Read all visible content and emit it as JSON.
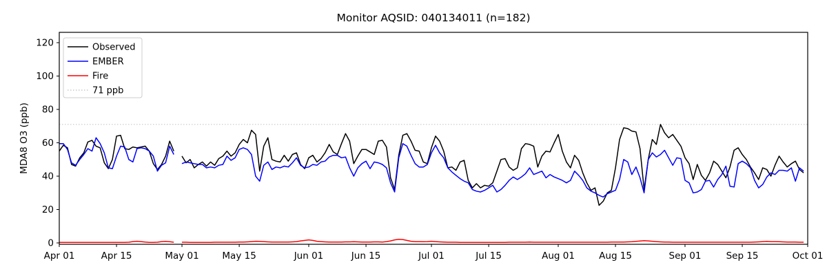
{
  "figure": {
    "title": "Monitor AQSID: 040134011 (n=182)",
    "ylabel": "MDA8 O3 (ppb)"
  },
  "legend": {
    "position": "upper left",
    "items": [
      {
        "label": "Observed",
        "color": "#000000",
        "style": "solid"
      },
      {
        "label": "EMBER",
        "color": "#0000ff",
        "style": "solid"
      },
      {
        "label": "Fire",
        "color": "#ff0000",
        "style": "solid"
      },
      {
        "label": "71 ppb",
        "color": "#c8c8c8",
        "style": "dotted"
      }
    ]
  },
  "chart_data": {
    "type": "line",
    "title": "Monitor AQSID: 040134011 (n=182)",
    "xlabel": "",
    "ylabel": "MDA8 O3 (ppb)",
    "ylim": [
      0,
      126
    ],
    "y_ticks": [
      0,
      20,
      40,
      60,
      80,
      100,
      120
    ],
    "x_tick_labels": [
      "Apr 01",
      "Apr 15",
      "May 01",
      "May 15",
      "Jun 01",
      "Jun 15",
      "Jul 01",
      "Jul 15",
      "Aug 01",
      "Aug 15",
      "Sep 01",
      "Sep 15",
      "Oct 01"
    ],
    "x_tick_days": [
      0,
      14,
      30,
      44,
      61,
      75,
      91,
      105,
      122,
      136,
      153,
      167,
      183
    ],
    "x_total_days": 183,
    "x_unit": "daily values, day 0 = Apr 01, day 182 = Sep 30 (one missing day Apr 30)",
    "grid": false,
    "legend_position": "upper left",
    "threshold": {
      "label": "71 ppb",
      "value": 71,
      "color": "#c8c8c8",
      "style": "dotted"
    },
    "series": [
      {
        "name": "Observed",
        "color": "#000000",
        "values": [
          55,
          58.5,
          57,
          47,
          46,
          51,
          54,
          60.5,
          61.5,
          58,
          57,
          48,
          44.5,
          50,
          64,
          64.5,
          56.5,
          56,
          57.5,
          57,
          57.5,
          58,
          55,
          47.5,
          44,
          47,
          52,
          61,
          55,
          null,
          52,
          48,
          50,
          45,
          47,
          48.5,
          46,
          48.5,
          46.5,
          50.5,
          52,
          55,
          52,
          54,
          59,
          62,
          60,
          67.5,
          65,
          43,
          58,
          63,
          50,
          49,
          48.5,
          52.5,
          49,
          53,
          54,
          47,
          44.5,
          51,
          52.5,
          48.5,
          50.5,
          54,
          59,
          54.5,
          53,
          59.5,
          65.5,
          61,
          47.5,
          52,
          56,
          56,
          54.5,
          53,
          61,
          61.5,
          57.5,
          39,
          32,
          52.5,
          64.5,
          65.5,
          61,
          55.5,
          55,
          48.5,
          47.5,
          57,
          64,
          61,
          55,
          45,
          45.5,
          43.5,
          48.5,
          49.5,
          37.5,
          33,
          35.5,
          33,
          34.5,
          34,
          36,
          43,
          50,
          50.5,
          45.5,
          43.5,
          45,
          56.5,
          59.5,
          59,
          58,
          45.5,
          52,
          55,
          54.5,
          60,
          65,
          55,
          48.5,
          45,
          52.5,
          49.5,
          42,
          36,
          31.5,
          33,
          22.5,
          25,
          30,
          31.5,
          45,
          62,
          69,
          68.5,
          67,
          66.5,
          56.5,
          32,
          50,
          62,
          59,
          71,
          66,
          63,
          65,
          61.5,
          58,
          51,
          47.5,
          38,
          47,
          40.5,
          37.5,
          42,
          49,
          47,
          43,
          39,
          45.5,
          55.5,
          57,
          53,
          50,
          45.5,
          42,
          38,
          45,
          44,
          40,
          46.5,
          52,
          48.5,
          45.5,
          47.5,
          49,
          44,
          42
        ]
      },
      {
        "name": "EMBER",
        "color": "#0000ff",
        "values": [
          59.5,
          59.5,
          56,
          48,
          46.5,
          50,
          53,
          56.5,
          55,
          63,
          59.5,
          54,
          45,
          44.5,
          52,
          58,
          57.5,
          50,
          48.5,
          56.5,
          57,
          56.5,
          55,
          52,
          43,
          46.5,
          48,
          58,
          53,
          null,
          47.5,
          48.5,
          48,
          47.5,
          47,
          47,
          45,
          45.5,
          45,
          46.5,
          47,
          52,
          49.5,
          51,
          56,
          57,
          56,
          53,
          40,
          37,
          46.5,
          48.5,
          44,
          45.5,
          45,
          46,
          45.5,
          48,
          51,
          46.5,
          45,
          45.5,
          47,
          46.5,
          48.5,
          49,
          51.5,
          52.5,
          52.5,
          51,
          51.5,
          45,
          40,
          45,
          47.5,
          49,
          44.5,
          48.5,
          48,
          47,
          45,
          36,
          30.5,
          51,
          59.5,
          58,
          52.5,
          47.5,
          45.5,
          45.5,
          47,
          54,
          58.5,
          54,
          51,
          45,
          42.5,
          40.5,
          38.5,
          37,
          36,
          32,
          31,
          30.5,
          31.5,
          33,
          34.5,
          30.5,
          32,
          34.5,
          37.5,
          39.5,
          38,
          39.5,
          41.5,
          45,
          41,
          42,
          43,
          39,
          41,
          39.5,
          38.5,
          37.5,
          36,
          37.5,
          43,
          40.5,
          37.5,
          33,
          31,
          30,
          28.5,
          27.5,
          29.5,
          30.5,
          31.5,
          38,
          50,
          48.5,
          41,
          45.5,
          39,
          30,
          50,
          54,
          51.5,
          53,
          55.5,
          51,
          46.5,
          51,
          50.5,
          37.5,
          36,
          30,
          30.5,
          32,
          37,
          37.5,
          33.5,
          38,
          41,
          46,
          34,
          33.5,
          47.5,
          49,
          47.5,
          45,
          37.5,
          33,
          35,
          39.5,
          42,
          41,
          43.5,
          43.5,
          43,
          45,
          37,
          45,
          43
        ]
      },
      {
        "name": "Fire",
        "color": "#ff0000",
        "values": [
          0.3,
          0.3,
          0.3,
          0.3,
          0.3,
          0.3,
          0.3,
          0.3,
          0.3,
          0.3,
          0.3,
          0.3,
          0.3,
          0.3,
          0.3,
          0.3,
          0.3,
          0.4,
          0.8,
          1.0,
          0.8,
          0.5,
          0.3,
          0.3,
          0.4,
          0.8,
          0.9,
          0.7,
          0.4,
          null,
          0.4,
          0.4,
          0.3,
          0.3,
          0.3,
          0.3,
          0.3,
          0.3,
          0.4,
          0.4,
          0.4,
          0.4,
          0.4,
          0.4,
          0.5,
          0.5,
          0.6,
          0.8,
          1.0,
          0.9,
          0.8,
          0.6,
          0.5,
          0.5,
          0.5,
          0.5,
          0.5,
          0.6,
          0.8,
          1.2,
          1.5,
          1.8,
          1.5,
          1.0,
          0.8,
          0.6,
          0.5,
          0.5,
          0.5,
          0.5,
          0.6,
          0.6,
          0.7,
          0.6,
          0.5,
          0.5,
          0.5,
          0.6,
          0.6,
          0.5,
          0.8,
          1.2,
          1.8,
          2.2,
          2.0,
          1.5,
          1.0,
          0.8,
          0.8,
          0.7,
          0.8,
          1.0,
          0.8,
          0.6,
          0.5,
          0.4,
          0.4,
          0.4,
          0.3,
          0.3,
          0.3,
          0.3,
          0.3,
          0.3,
          0.3,
          0.3,
          0.3,
          0.3,
          0.3,
          0.3,
          0.4,
          0.4,
          0.4,
          0.4,
          0.4,
          0.5,
          0.4,
          0.4,
          0.4,
          0.4,
          0.4,
          0.4,
          0.4,
          0.4,
          0.4,
          0.4,
          0.4,
          0.4,
          0.4,
          0.4,
          0.4,
          0.4,
          0.4,
          0.4,
          0.4,
          0.5,
          0.5,
          0.5,
          0.5,
          0.6,
          0.7,
          0.9,
          1.1,
          1.3,
          1.2,
          1.0,
          0.8,
          0.6,
          0.5,
          0.5,
          0.4,
          0.4,
          0.4,
          0.4,
          0.4,
          0.4,
          0.4,
          0.4,
          0.4,
          0.4,
          0.4,
          0.4,
          0.4,
          0.4,
          0.4,
          0.4,
          0.4,
          0.4,
          0.4,
          0.4,
          0.5,
          0.6,
          0.8,
          0.9,
          0.8,
          0.8,
          0.7,
          0.6,
          0.5,
          0.5,
          0.5,
          0.4,
          0.4
        ]
      }
    ]
  }
}
